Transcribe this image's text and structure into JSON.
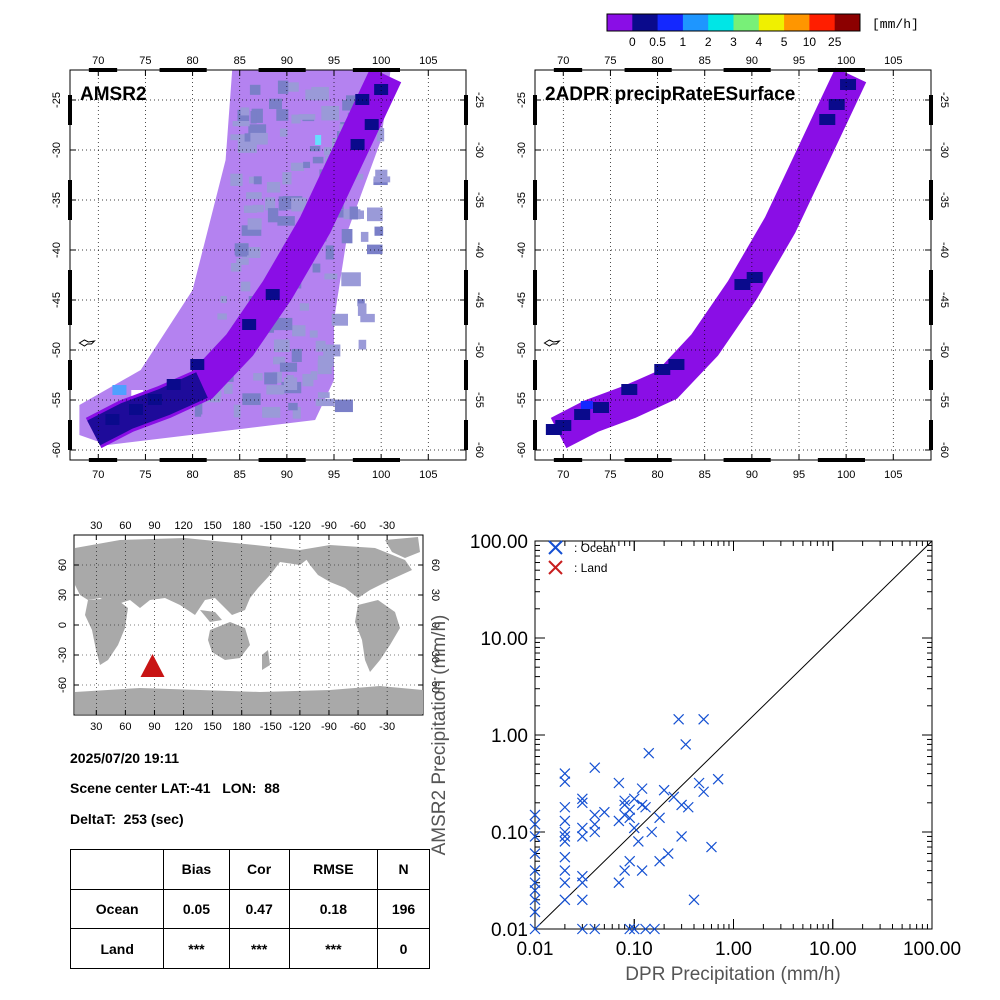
{
  "colorbar": {
    "unit": "[mm/h]",
    "labels": [
      "0",
      "0.5",
      "1",
      "2",
      "3",
      "4",
      "5",
      "10",
      "25"
    ],
    "colors": [
      "#8a0ee6",
      "#0a0a8c",
      "#1428ff",
      "#1e96ff",
      "#00e6e6",
      "#78f078",
      "#f0f000",
      "#ff9600",
      "#ff1e00",
      "#8c0000"
    ]
  },
  "palette": {
    "swath_light": "#b482f0",
    "swath_mid": "#7a7fc8",
    "swath_gray": "#9a9ad8",
    "rain_light": "#8a0ee6",
    "rain_dark": "#0a0a8c",
    "rain_blue": "#1428ff",
    "land_gray": "#a9a9a9",
    "ocean_marker": "#1450d2",
    "land_marker": "#c81e1e",
    "scene_marker": "#c81414"
  },
  "maps": [
    {
      "title": "AMSR2",
      "lon_ticks": [
        "70",
        "75",
        "80",
        "85",
        "90",
        "95",
        "100",
        "105"
      ],
      "lat_ticks": [
        "-25",
        "-30",
        "-35",
        "-40",
        "-45",
        "-50",
        "-55",
        "-60"
      ]
    },
    {
      "title": "2ADPR precipRateESurface",
      "lon_ticks": [
        "70",
        "75",
        "80",
        "85",
        "90",
        "95",
        "100",
        "105"
      ],
      "lat_ticks": [
        "-25",
        "-30",
        "-35",
        "-40",
        "-45",
        "-50",
        "-55",
        "-60"
      ]
    }
  ],
  "world_map": {
    "lon_ticks": [
      "30",
      "60",
      "90",
      "120",
      "150",
      "180",
      "-150",
      "-120",
      "-90",
      "-60",
      "-30"
    ],
    "lat_ticks": [
      "60",
      "30",
      "0",
      "-30",
      "-60"
    ],
    "scene_center": {
      "lat": -41,
      "lon": 88
    }
  },
  "info": {
    "datetime": "2025/07/20 19:11",
    "scene_center": "Scene center LAT:-41   LON:  88",
    "delta_t": "DeltaT:  253 (sec)"
  },
  "stats_table": {
    "headers": [
      "",
      "Bias",
      "Cor",
      "RMSE",
      "N"
    ],
    "rows": [
      [
        "Ocean",
        "0.05",
        "0.47",
        "0.18",
        "196"
      ],
      [
        "Land",
        "***",
        "***",
        "***",
        "0"
      ]
    ]
  },
  "chart_data": {
    "type": "scatter",
    "xscale": "log",
    "yscale": "log",
    "xlim": [
      0.01,
      100
    ],
    "ylim": [
      0.01,
      100
    ],
    "xlabel": "DPR Precipitation (mm/h)",
    "ylabel": "AMSR2 Precipitation (mm/h)",
    "x_tick_labels": [
      "0.01",
      "0.10",
      "1.00",
      "10.00",
      "100.00"
    ],
    "y_tick_labels": [
      "0.01",
      "0.10",
      "1.00",
      "10.00",
      "100.00"
    ],
    "reference_line": "y = x",
    "legend_position": "top-left",
    "series": [
      {
        "name": ": Ocean",
        "marker": "x",
        "x": [
          0.01,
          0.01,
          0.01,
          0.01,
          0.01,
          0.01,
          0.01,
          0.01,
          0.01,
          0.01,
          0.02,
          0.02,
          0.02,
          0.02,
          0.02,
          0.02,
          0.02,
          0.02,
          0.02,
          0.02,
          0.02,
          0.03,
          0.03,
          0.03,
          0.03,
          0.03,
          0.03,
          0.03,
          0.03,
          0.04,
          0.04,
          0.04,
          0.04,
          0.04,
          0.05,
          0.07,
          0.07,
          0.07,
          0.08,
          0.08,
          0.08,
          0.08,
          0.09,
          0.09,
          0.09,
          0.09,
          0.1,
          0.1,
          0.1,
          0.11,
          0.12,
          0.12,
          0.12,
          0.13,
          0.13,
          0.14,
          0.15,
          0.16,
          0.18,
          0.18,
          0.2,
          0.22,
          0.25,
          0.28,
          0.3,
          0.3,
          0.33,
          0.35,
          0.4,
          0.45,
          0.5,
          0.5,
          0.6,
          0.7
        ],
        "y": [
          0.01,
          0.015,
          0.02,
          0.025,
          0.03,
          0.04,
          0.06,
          0.09,
          0.12,
          0.15,
          0.02,
          0.03,
          0.04,
          0.055,
          0.08,
          0.09,
          0.1,
          0.13,
          0.18,
          0.33,
          0.4,
          0.01,
          0.02,
          0.03,
          0.035,
          0.09,
          0.11,
          0.2,
          0.22,
          0.01,
          0.1,
          0.12,
          0.15,
          0.46,
          0.16,
          0.03,
          0.13,
          0.32,
          0.04,
          0.15,
          0.19,
          0.21,
          0.01,
          0.05,
          0.14,
          0.17,
          0.01,
          0.11,
          0.22,
          0.08,
          0.04,
          0.19,
          0.28,
          0.01,
          0.18,
          0.65,
          0.1,
          0.01,
          0.05,
          0.14,
          0.27,
          0.06,
          0.23,
          1.45,
          0.09,
          0.19,
          0.8,
          0.18,
          0.02,
          0.32,
          0.26,
          1.45,
          0.07,
          0.35
        ]
      },
      {
        "name": ": Land",
        "marker": "x",
        "x": [],
        "y": []
      }
    ]
  }
}
